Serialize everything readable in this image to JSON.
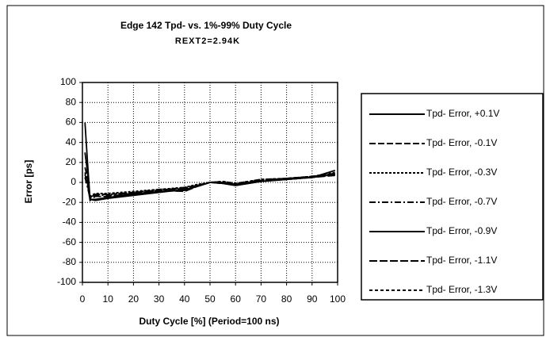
{
  "chart_data": {
    "type": "line",
    "title": "Edge 142 Tpd- vs. 1%-99% Duty Cycle",
    "subtitle": "REXT2=2.94K",
    "y_label": "Error  [ps]",
    "x_label": "Duty Cycle [%]  (Period=100 ns)",
    "x": [
      1,
      2,
      3,
      5,
      10,
      20,
      30,
      40,
      45,
      50,
      55,
      60,
      70,
      80,
      90,
      99
    ],
    "series": [
      {
        "name": "Tpd- Error, +0.1V",
        "color": "#000000",
        "dash": "none",
        "values": [
          60,
          20,
          -17,
          -18,
          -16,
          -13,
          -10,
          -7,
          -4,
          0,
          -1,
          -3,
          1,
          3,
          5,
          8
        ]
      },
      {
        "name": "Tpd- Error, -0.1V",
        "color": "#000000",
        "dash": "8,3",
        "values": [
          15,
          5,
          -15,
          -12,
          -12,
          -10,
          -8,
          -5,
          -3,
          0,
          0,
          -2,
          2,
          4,
          6,
          9
        ]
      },
      {
        "name": "Tpd- Error, -0.3V",
        "color": "#000000",
        "dash": "3,2",
        "values": [
          10,
          0,
          -14,
          -11,
          -11,
          -9,
          -7,
          -5,
          -2,
          0,
          1,
          -1,
          3,
          4,
          6,
          10
        ]
      },
      {
        "name": "Tpd- Error, -0.7V",
        "color": "#000000",
        "dash": "8,3,2,3",
        "values": [
          5,
          -5,
          -16,
          -13,
          -13,
          -11,
          -8,
          -6,
          -3,
          0,
          0,
          -2,
          2,
          3,
          5,
          9
        ]
      },
      {
        "name": "Tpd- Error, -0.9V",
        "color": "#000000",
        "dash": "none",
        "values": [
          30,
          10,
          -17,
          -17,
          -15,
          -12,
          -9,
          -8,
          -4,
          0,
          -1,
          -3,
          1,
          3,
          5,
          12
        ]
      },
      {
        "name": "Tpd- Error, -1.1V",
        "color": "#000000",
        "dash": "10,3",
        "values": [
          8,
          -2,
          -18,
          -14,
          -14,
          -11,
          -8,
          -9,
          -4,
          0,
          -1,
          -2,
          2,
          4,
          5,
          7
        ]
      },
      {
        "name": "Tpd- Error, -1.3V",
        "color": "#000000",
        "dash": "4,3",
        "values": [
          5,
          0,
          -15,
          -12,
          -12,
          -10,
          -7,
          -6,
          -3,
          0,
          1,
          -1,
          3,
          4,
          6,
          8
        ]
      }
    ],
    "xlim": [
      0,
      100
    ],
    "xticks": [
      0,
      10,
      20,
      30,
      40,
      50,
      60,
      70,
      80,
      90,
      100
    ],
    "ylim": [
      -100,
      100
    ],
    "yticks": [
      -100,
      -80,
      -60,
      -40,
      -20,
      0,
      20,
      40,
      60,
      80,
      100
    ],
    "grid": true,
    "legend": "right"
  }
}
